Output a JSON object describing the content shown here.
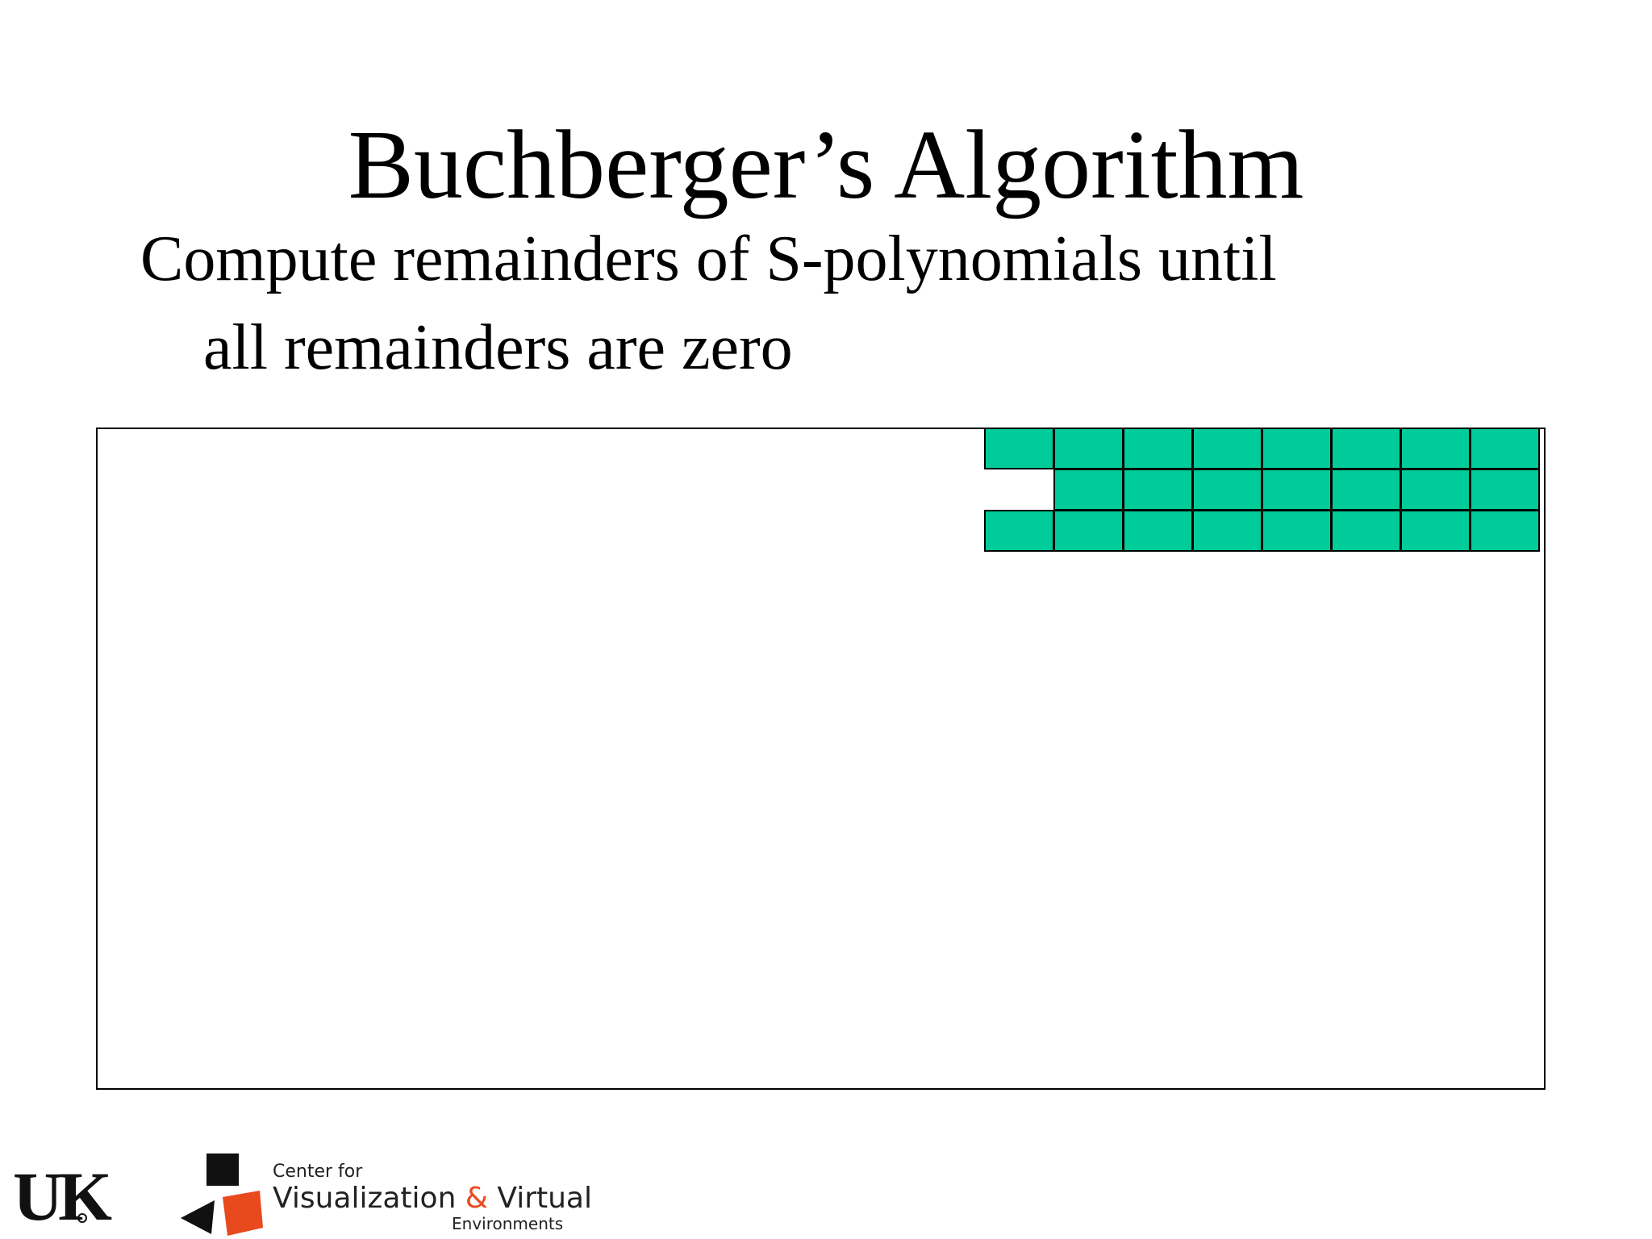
{
  "slide": {
    "title": "Buchberger’s Algorithm",
    "bullet": {
      "line1": "Compute remainders of S-polynomials until",
      "line2": "all remainders are zero"
    }
  },
  "grid": {
    "columns": 8,
    "rows": [
      {
        "filled_columns": [
          0,
          1,
          2,
          3,
          4,
          5,
          6,
          7
        ]
      },
      {
        "filled_columns": [
          1,
          2,
          3,
          4,
          5,
          6,
          7
        ]
      },
      {
        "filled_columns": [
          0,
          1,
          2,
          3,
          4,
          5,
          6,
          7
        ]
      }
    ],
    "fill_color": "#00cc99",
    "border_color": "#000000"
  },
  "footer": {
    "uk_logo": "UK",
    "center_for": "Center for",
    "name_part1": "Visualization ",
    "ampersand": "&",
    "name_part2": " Virtual",
    "environments": "Environments",
    "accent_color": "#e84a1e"
  }
}
